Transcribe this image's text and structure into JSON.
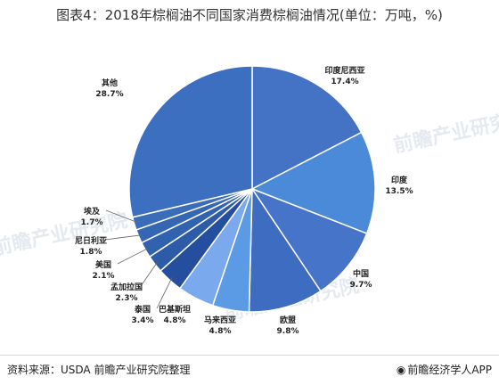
{
  "title": "图表4：2018年棕榈油不同国家消费棕榈油情况(单位：万吨，%)",
  "footer": {
    "source": "资料来源：USDA 前瞻产业研究院整理",
    "brand": "前瞻经济学人APP",
    "brand_icon": "eye-logo-icon"
  },
  "watermarks": [
    "前瞻产业研究院",
    "前瞻产业研究院",
    "前瞻产业研究院",
    "前瞻产业研究院"
  ],
  "chart_data": {
    "type": "pie",
    "slices": [
      {
        "label": "印度尼西亚",
        "value": 17.4,
        "display": "17.4%",
        "color": "#4472c4"
      },
      {
        "label": "印度",
        "value": 13.5,
        "display": "13.5%",
        "color": "#4a8ad9"
      },
      {
        "label": "中国",
        "value": 9.7,
        "display": "9.7%",
        "color": "#4674c8"
      },
      {
        "label": "欧盟",
        "value": 9.8,
        "display": "9.8%",
        "color": "#3d6cc0"
      },
      {
        "label": "马来西亚",
        "value": 4.8,
        "display": "4.8%",
        "color": "#5b9be6"
      },
      {
        "label": "巴基斯坦",
        "value": 4.8,
        "display": "4.8%",
        "color": "#7aa9ee"
      },
      {
        "label": "泰国",
        "value": 3.4,
        "display": "3.4%",
        "color": "#254f9e"
      },
      {
        "label": "孟加拉国",
        "value": 2.3,
        "display": "2.3%",
        "color": "#2d5ba8"
      },
      {
        "label": "美国",
        "value": 2.1,
        "display": "2.1%",
        "color": "#3162b0"
      },
      {
        "label": "尼日利亚",
        "value": 1.8,
        "display": "1.8%",
        "color": "#3566b4"
      },
      {
        "label": "埃及",
        "value": 1.7,
        "display": "1.7%",
        "color": "#3a6cba"
      },
      {
        "label": "其他",
        "value": 28.7,
        "display": "28.7%",
        "color": "#3c6fc0"
      }
    ]
  }
}
